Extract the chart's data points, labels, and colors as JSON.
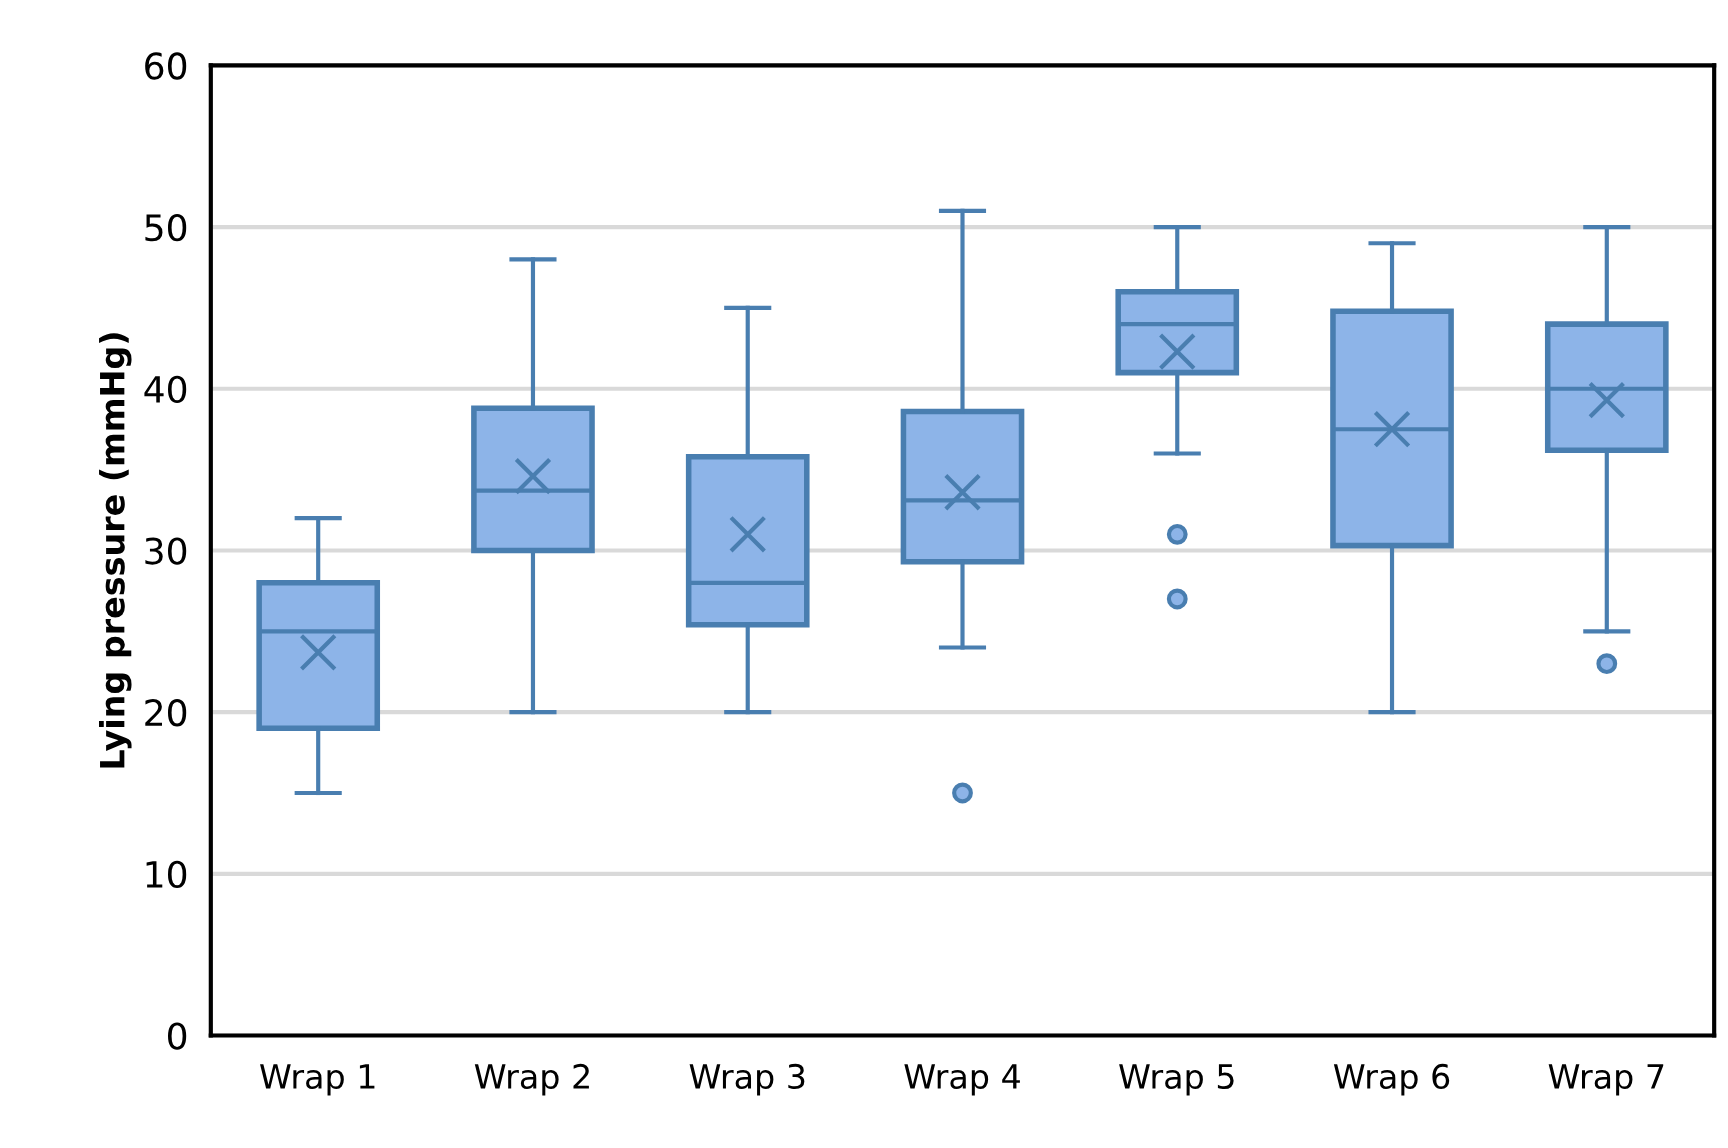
{
  "chart_data": {
    "type": "box",
    "ylabel": "Lying pressure (mmHg)",
    "categories": [
      "Wrap 1",
      "Wrap 2",
      "Wrap 3",
      "Wrap 4",
      "Wrap 5",
      "Wrap 6",
      "Wrap 7"
    ],
    "color": "#8db4e8",
    "ylim": [
      0,
      60
    ],
    "yticks": [
      0,
      10,
      20,
      30,
      40,
      50,
      60
    ],
    "grid": "y",
    "legend": false,
    "boxes": [
      {
        "low": 15,
        "q1": 19,
        "median": 25,
        "q3": 28,
        "high": 32,
        "mean": 23.7
      },
      {
        "low": 20,
        "q1": 30,
        "median": 33.7,
        "q3": 38.8,
        "high": 48,
        "mean": 34.6
      },
      {
        "low": 20,
        "q1": 25.4,
        "median": 28,
        "q3": 35.8,
        "high": 45,
        "mean": 31
      },
      {
        "low": 24,
        "q1": 29.3,
        "median": 33.1,
        "q3": 38.6,
        "high": 51,
        "mean": 33.6,
        "outliers": [
          15
        ]
      },
      {
        "low": 36,
        "q1": 41,
        "median": 44,
        "q3": 46,
        "high": 50,
        "mean": 42.3,
        "outliers": [
          31,
          27
        ]
      },
      {
        "low": 20,
        "q1": 30.3,
        "median": 37.5,
        "q3": 44.8,
        "high": 49,
        "mean": 37.5
      },
      {
        "low": 25,
        "q1": 36.2,
        "median": 40,
        "q3": 44,
        "high": 50,
        "mean": 39.3,
        "outliers": [
          23
        ]
      }
    ]
  }
}
